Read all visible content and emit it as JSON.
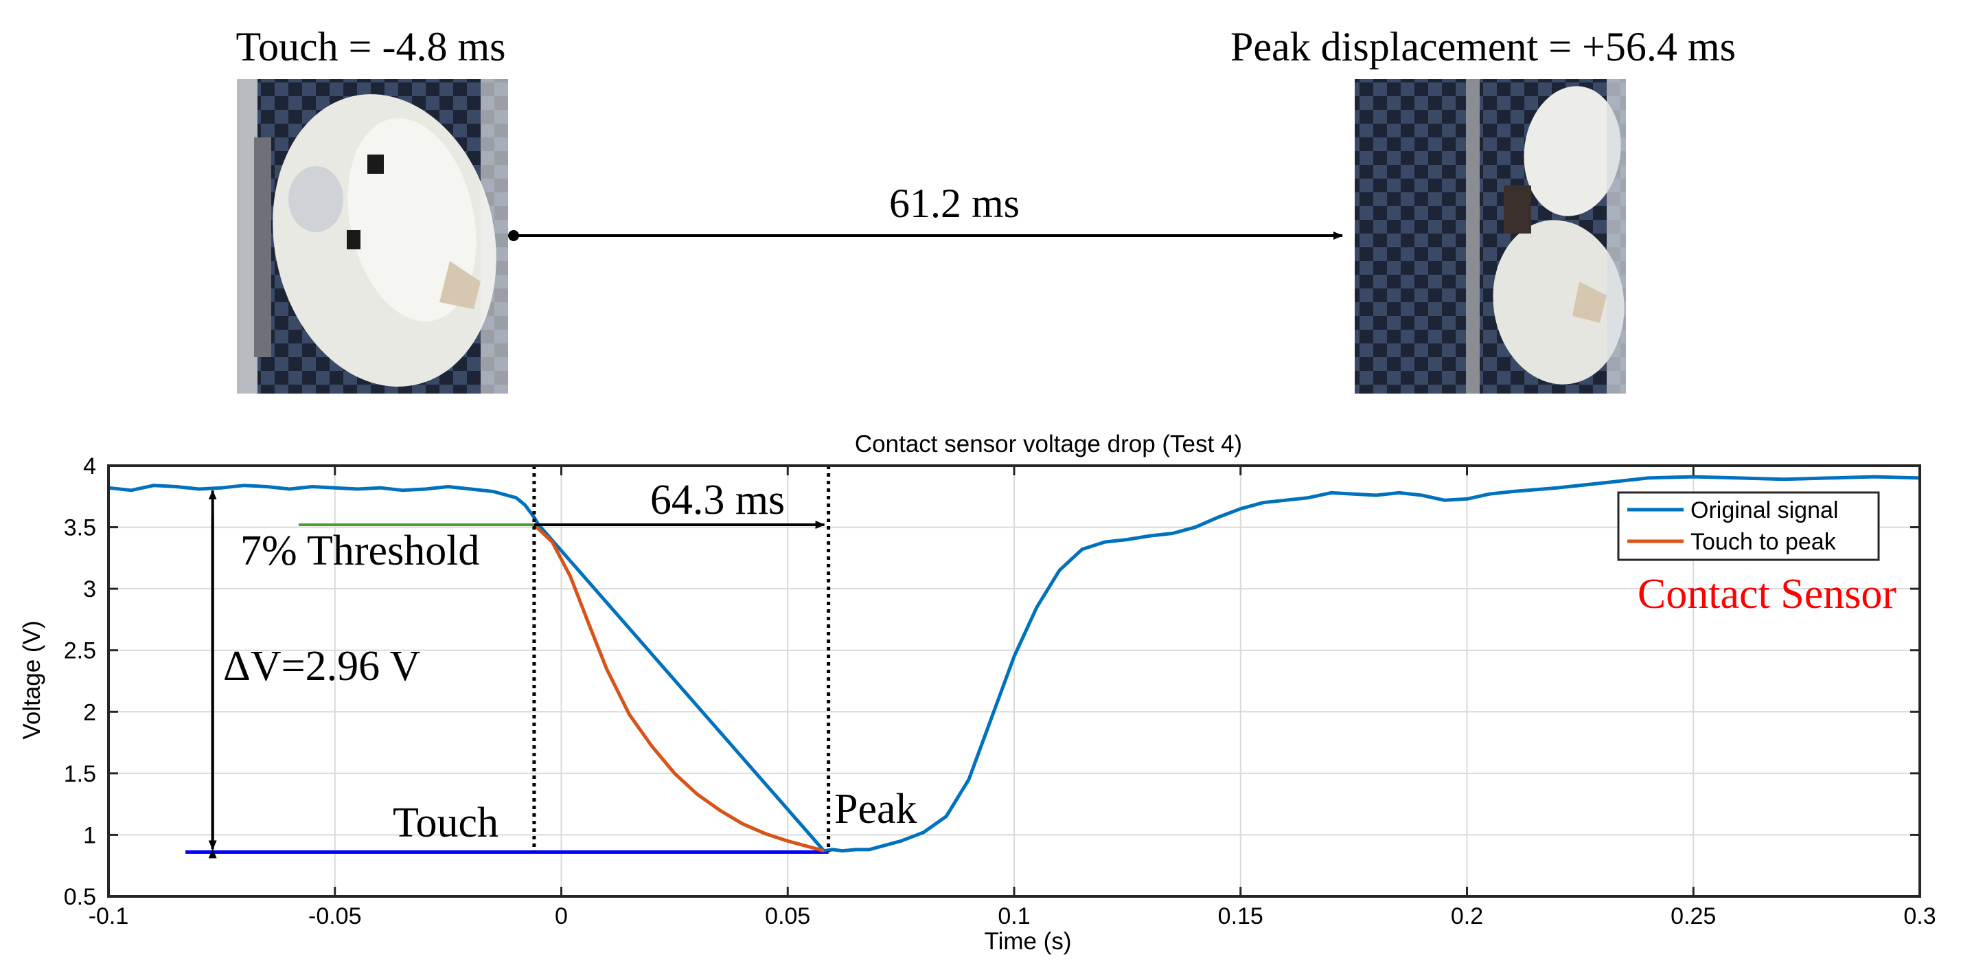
{
  "photos": {
    "left_caption": "Touch = -4.8 ms",
    "right_caption": "Peak displacement = +56.4 ms",
    "arrow_label": "61.2 ms",
    "left_image": "airbag-touch-photo",
    "right_image": "airbag-peak-photo"
  },
  "colors": {
    "signal": "#0072bd",
    "touch_to_peak": "#d95319",
    "threshold": "#4a9e2e",
    "baseline": "#0000ff",
    "contact_label": "#ff0000",
    "grid": "#d9d9d9"
  },
  "chart_data": {
    "type": "line",
    "title": "Contact sensor voltage drop (Test 4)",
    "xlabel": "Time (s)",
    "ylabel": "Voltage (V)",
    "xlim": [
      -0.1,
      0.3
    ],
    "ylim": [
      0.5,
      4
    ],
    "x_ticks": [
      -0.1,
      -0.05,
      0,
      0.05,
      0.1,
      0.15,
      0.2,
      0.25,
      0.3
    ],
    "x_tick_labels": [
      "-0.1",
      "-0.05",
      "0",
      "0.05",
      "0.1",
      "0.15",
      "0.2",
      "0.25",
      "0.3"
    ],
    "y_ticks": [
      0.5,
      1,
      1.5,
      2,
      2.5,
      3,
      3.5,
      4
    ],
    "y_tick_labels": [
      "0.5",
      "1",
      "1.5",
      "2",
      "2.5",
      "3",
      "3.5",
      "4"
    ],
    "grid": true,
    "legend": [
      "Original signal",
      "Touch to peak"
    ],
    "legend_position": "top-right",
    "series": [
      {
        "name": "Original signal",
        "x": [
          -0.1,
          -0.095,
          -0.09,
          -0.085,
          -0.08,
          -0.075,
          -0.07,
          -0.065,
          -0.06,
          -0.055,
          -0.05,
          -0.045,
          -0.04,
          -0.035,
          -0.03,
          -0.025,
          -0.02,
          -0.015,
          -0.01,
          -0.008,
          -0.006,
          -0.005,
          0.058,
          0.06,
          0.062,
          0.065,
          0.068,
          0.07,
          0.075,
          0.08,
          0.085,
          0.09,
          0.095,
          0.1,
          0.105,
          0.11,
          0.115,
          0.12,
          0.125,
          0.13,
          0.135,
          0.14,
          0.145,
          0.15,
          0.155,
          0.16,
          0.165,
          0.17,
          0.175,
          0.18,
          0.185,
          0.19,
          0.195,
          0.2,
          0.205,
          0.21,
          0.22,
          0.23,
          0.24,
          0.25,
          0.26,
          0.27,
          0.28,
          0.29,
          0.3
        ],
        "y": [
          3.82,
          3.8,
          3.84,
          3.83,
          3.81,
          3.82,
          3.84,
          3.83,
          3.81,
          3.83,
          3.82,
          3.81,
          3.82,
          3.8,
          3.81,
          3.83,
          3.81,
          3.79,
          3.74,
          3.68,
          3.58,
          3.52,
          0.87,
          0.88,
          0.87,
          0.88,
          0.88,
          0.9,
          0.95,
          1.02,
          1.15,
          1.45,
          1.95,
          2.45,
          2.85,
          3.15,
          3.32,
          3.38,
          3.4,
          3.43,
          3.45,
          3.5,
          3.58,
          3.65,
          3.7,
          3.72,
          3.74,
          3.78,
          3.77,
          3.76,
          3.78,
          3.76,
          3.72,
          3.73,
          3.77,
          3.79,
          3.82,
          3.86,
          3.9,
          3.91,
          3.9,
          3.89,
          3.9,
          3.91,
          3.9
        ]
      },
      {
        "name": "Touch to peak",
        "x": [
          -0.006,
          -0.002,
          0.002,
          0.006,
          0.01,
          0.015,
          0.02,
          0.025,
          0.03,
          0.035,
          0.04,
          0.045,
          0.05,
          0.055,
          0.058
        ],
        "y": [
          3.52,
          3.38,
          3.1,
          2.72,
          2.35,
          1.98,
          1.72,
          1.5,
          1.33,
          1.2,
          1.09,
          1.01,
          0.95,
          0.9,
          0.87
        ]
      }
    ],
    "annotations": {
      "threshold_label": "7% Threshold",
      "threshold_value": 3.52,
      "threshold_x_start": -0.058,
      "delta_label": "ΔV=2.96 V",
      "delta_x": -0.077,
      "delta_top": 3.82,
      "delta_bottom": 0.86,
      "touch_label": "Touch",
      "peak_label": "Peak",
      "touch_time": -0.006,
      "peak_time": 0.059,
      "baseline_value": 0.86,
      "baseline_x_start": -0.083,
      "interval_label": "64.3 ms",
      "contact_sensor_label": "Contact Sensor"
    }
  }
}
